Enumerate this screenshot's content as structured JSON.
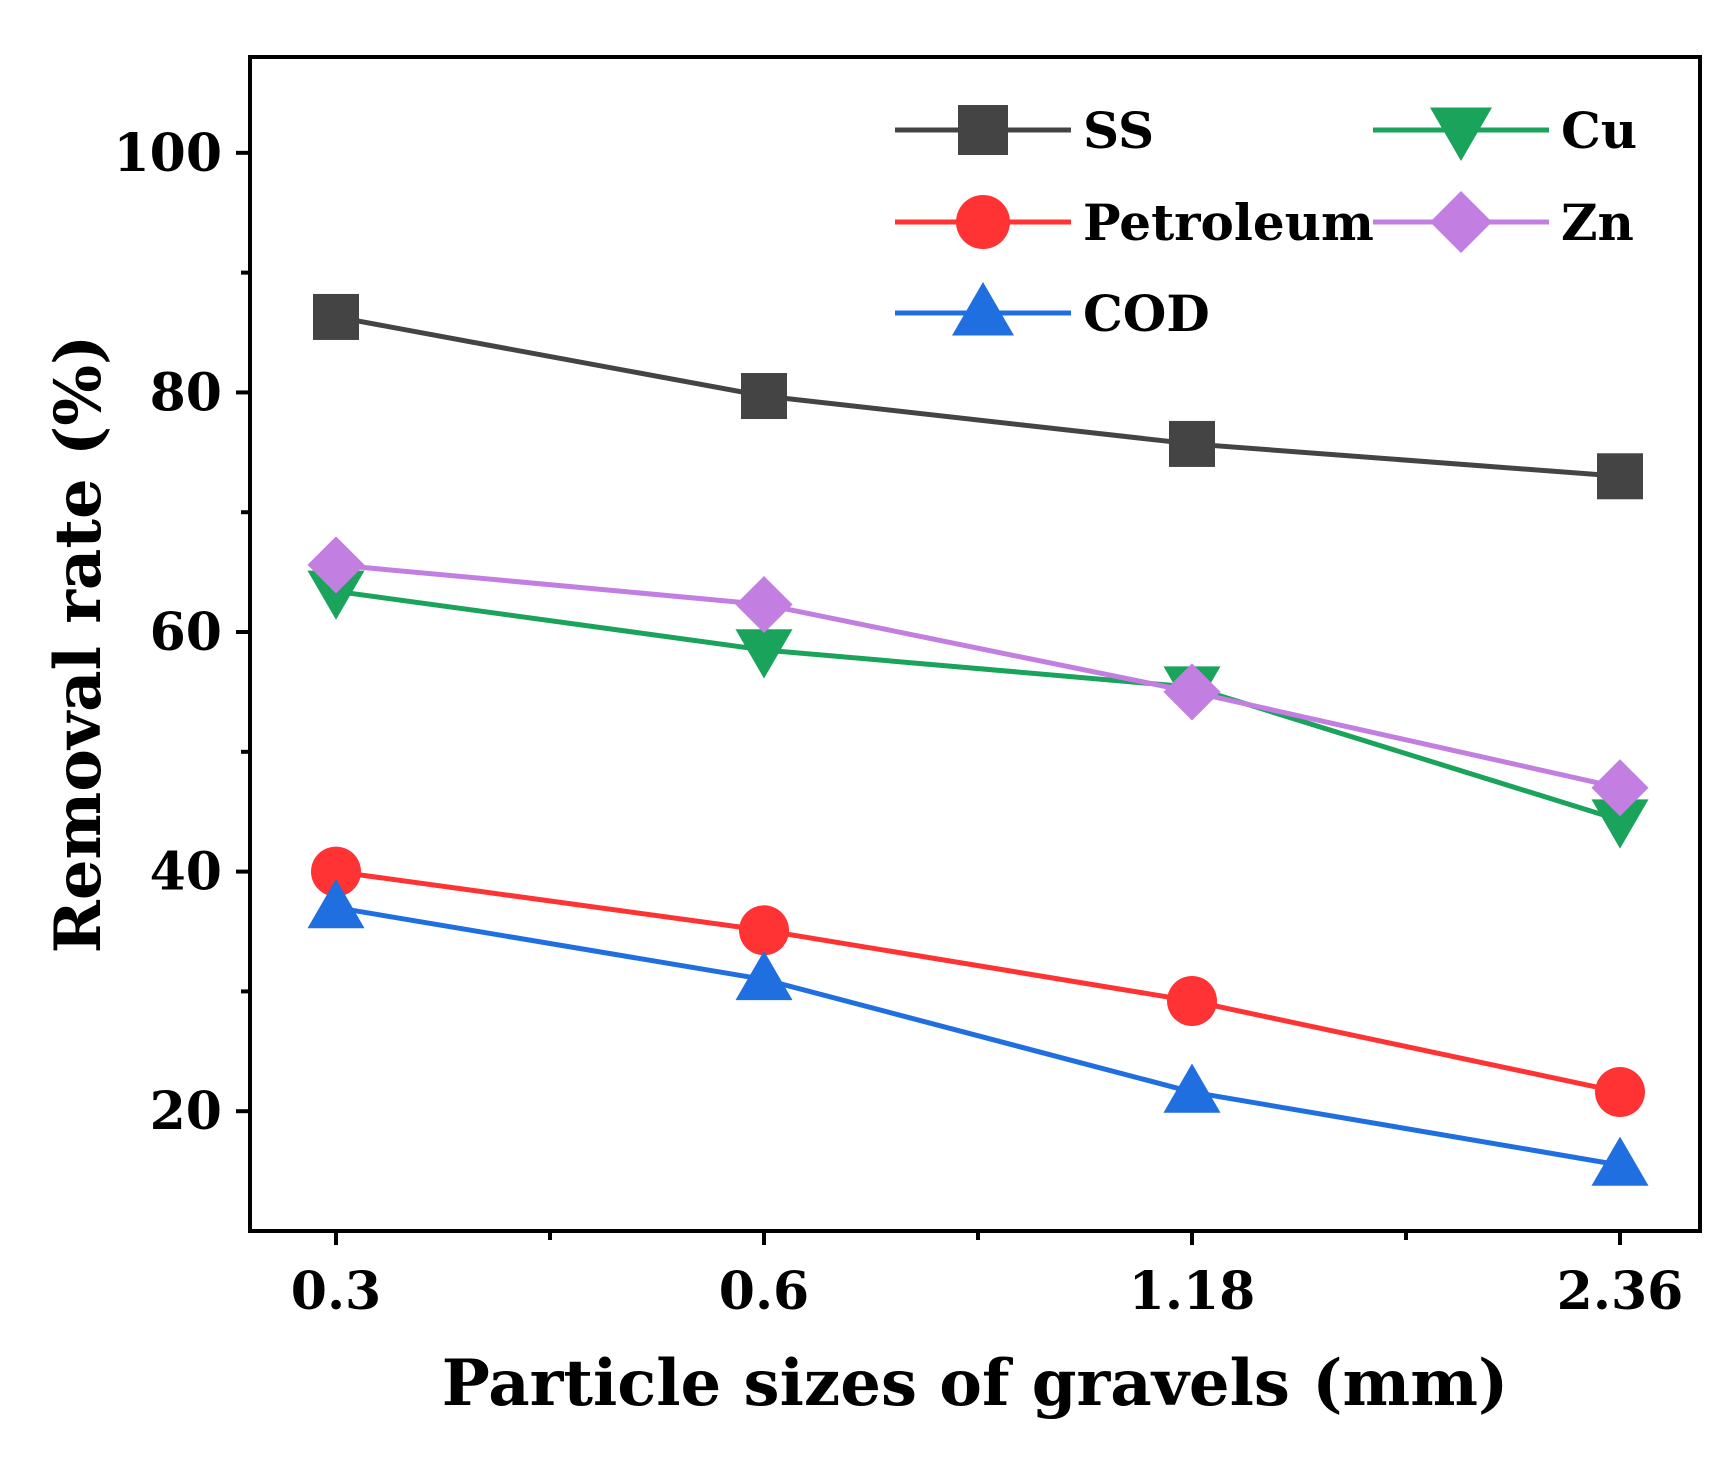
{
  "chart_data": {
    "type": "line",
    "title": "",
    "xlabel": "Particle sizes of gravels (mm)",
    "ylabel": "Removal rate (%)",
    "categories": [
      "0.3",
      "0.6",
      "1.18",
      "2.36"
    ],
    "ylim": [
      10,
      108
    ],
    "yticks": [
      20,
      40,
      60,
      80,
      100
    ],
    "grid": false,
    "legend_position": "top",
    "series": [
      {
        "name": "SS",
        "color": "#444444",
        "marker": "square",
        "values": [
          86.3,
          79.7,
          75.7,
          73.0
        ]
      },
      {
        "name": "Petroleum",
        "color": "#ff3333",
        "marker": "circle",
        "values": [
          40.0,
          35.1,
          29.2,
          21.6
        ]
      },
      {
        "name": "COD",
        "color": "#1f6fe0",
        "marker": "triangle-up",
        "values": [
          37.0,
          31.0,
          21.6,
          15.5
        ]
      },
      {
        "name": "Cu",
        "color": "#1aa35a",
        "marker": "triangle-down",
        "values": [
          63.4,
          58.5,
          55.4,
          44.3
        ]
      },
      {
        "name": "Zn",
        "color": "#c27ee0",
        "marker": "diamond",
        "values": [
          65.6,
          62.3,
          55.0,
          47.0
        ]
      }
    ]
  }
}
